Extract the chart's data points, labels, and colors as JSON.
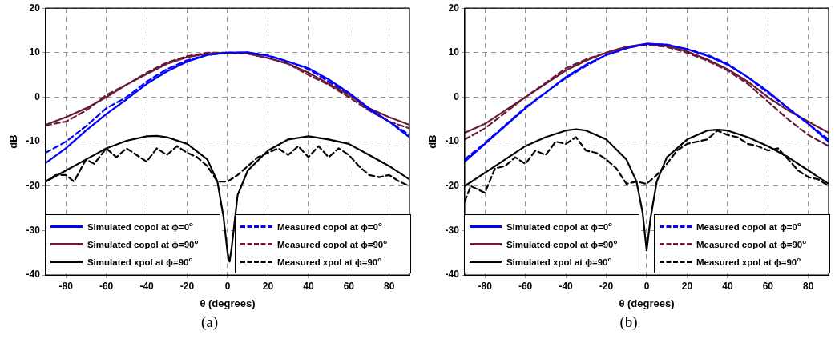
{
  "chart_data": [
    {
      "type": "line",
      "title": "(a)",
      "xlabel": "θ (degrees)",
      "ylabel": "dB",
      "xlim": [
        -90,
        90
      ],
      "xticks": [
        -80,
        -60,
        -40,
        -20,
        0,
        20,
        40,
        60,
        80
      ],
      "ylim": [
        -40,
        20
      ],
      "yticks": [
        -40,
        -30,
        -20,
        -10,
        0,
        10,
        20
      ],
      "grid": true,
      "legend": "bottom",
      "marker": "none",
      "series": [
        {
          "name": "Simulated copol at ϕ=0$^{o}$",
          "color": "#0000ff",
          "line_style": "solid",
          "x": [
            -90,
            -80,
            -70,
            -60,
            -50,
            -40,
            -30,
            -20,
            -10,
            0,
            10,
            20,
            30,
            40,
            50,
            60,
            70,
            80,
            90
          ],
          "values": [
            -14.8,
            -11.5,
            -7.5,
            -3.8,
            -0.5,
            3,
            5.8,
            8,
            9.5,
            10,
            10.1,
            9.3,
            8,
            6.5,
            4,
            1,
            -2.5,
            -5.5,
            -9
          ]
        },
        {
          "name": "Simulated copol at ϕ=90$^{o}$",
          "color": "#6b1a3a",
          "line_style": "solid",
          "x": [
            -90,
            -80,
            -70,
            -60,
            -50,
            -40,
            -30,
            -20,
            -10,
            0,
            10,
            20,
            30,
            40,
            50,
            60,
            70,
            80,
            90
          ],
          "values": [
            -6.2,
            -4.5,
            -2.5,
            0,
            2.8,
            5.2,
            7.5,
            9,
            9.8,
            10,
            9.8,
            8.8,
            7.5,
            5.5,
            3,
            0.5,
            -2.5,
            -4.5,
            -6.2
          ]
        },
        {
          "name": "Simulated xpol at ϕ=90$^{o}$",
          "color": "#000000",
          "line_style": "solid",
          "x": [
            -90,
            -80,
            -70,
            -60,
            -50,
            -40,
            -35,
            -30,
            -20,
            -10,
            -5,
            -2,
            0,
            1,
            2,
            5,
            10,
            20,
            30,
            40,
            50,
            60,
            70,
            80,
            90
          ],
          "values": [
            -19,
            -16.5,
            -14,
            -11.5,
            -9.8,
            -8.8,
            -8.7,
            -9,
            -10.5,
            -14,
            -19,
            -27,
            -35,
            -37,
            -34,
            -22,
            -16.5,
            -12,
            -9.5,
            -8.8,
            -9.5,
            -10.5,
            -13,
            -15.5,
            -18.5
          ]
        },
        {
          "name": "Measured copol at ϕ=0$^{o}$",
          "color": "#0000ff",
          "line_style": "dashed",
          "x": [
            -90,
            -80,
            -70,
            -60,
            -50,
            -40,
            -30,
            -20,
            -10,
            0,
            10,
            20,
            30,
            40,
            50,
            60,
            70,
            80,
            90
          ],
          "values": [
            -12.5,
            -10,
            -6.5,
            -2.5,
            0,
            3.5,
            6.3,
            8.3,
            9.5,
            10,
            10,
            9.4,
            8,
            6.3,
            3.5,
            0.7,
            -2.8,
            -5.5,
            -8.5
          ]
        },
        {
          "name": "Measured copol at ϕ=90$^{o}$",
          "color": "#6b1a3a",
          "line_style": "dashed",
          "x": [
            -90,
            -80,
            -70,
            -60,
            -50,
            -40,
            -30,
            -20,
            -10,
            0,
            10,
            20,
            30,
            40,
            50,
            60,
            70,
            80,
            90
          ],
          "values": [
            -6.3,
            -5.5,
            -3,
            0.5,
            2.8,
            5.5,
            7.8,
            9.2,
            10,
            10,
            9.8,
            8.8,
            7.5,
            5,
            2.8,
            0,
            -3,
            -5.5,
            -7
          ]
        },
        {
          "name": "Measured xpol at ϕ=90$^{o}$",
          "color": "#000000",
          "line_style": "dashed",
          "x": [
            -90,
            -85,
            -80,
            -76,
            -70,
            -66,
            -60,
            -55,
            -50,
            -45,
            -40,
            -35,
            -30,
            -25,
            -20,
            -15,
            -10,
            -5,
            0,
            5,
            10,
            15,
            20,
            25,
            30,
            35,
            40,
            45,
            50,
            55,
            60,
            65,
            70,
            75,
            80,
            85,
            90
          ],
          "values": [
            -19,
            -17.5,
            -17.5,
            -19,
            -14,
            -15,
            -11.5,
            -13.5,
            -11.5,
            -13,
            -14.5,
            -11.5,
            -13,
            -11,
            -12.5,
            -13.5,
            -15.5,
            -19,
            -19,
            -17.5,
            -15.5,
            -13.5,
            -12.5,
            -11.5,
            -13,
            -11,
            -13.5,
            -11,
            -13.5,
            -11.5,
            -13,
            -15.5,
            -17.5,
            -18,
            -17.5,
            -19,
            -20
          ]
        }
      ]
    },
    {
      "type": "line",
      "title": "(b)",
      "xlabel": "θ (degrees)",
      "ylabel": "dB",
      "xlim": [
        -90,
        90
      ],
      "xticks": [
        -80,
        -60,
        -40,
        -20,
        0,
        20,
        40,
        60,
        80
      ],
      "ylim": [
        -40,
        20
      ],
      "yticks": [
        -40,
        -30,
        -20,
        -10,
        0,
        10,
        20
      ],
      "grid": true,
      "legend": "bottom",
      "marker": "none",
      "series": [
        {
          "name": "Simulated copol at ϕ=0$^{o}$",
          "color": "#0000ff",
          "line_style": "solid",
          "x": [
            -90,
            -80,
            -70,
            -60,
            -50,
            -40,
            -30,
            -20,
            -10,
            0,
            10,
            20,
            30,
            40,
            50,
            60,
            70,
            80,
            90
          ],
          "values": [
            -14.5,
            -10.5,
            -6.5,
            -2.5,
            1,
            4.5,
            7.3,
            9.5,
            11,
            12,
            11.8,
            10.8,
            9.3,
            7.3,
            4.5,
            1.3,
            -2.5,
            -6,
            -10
          ]
        },
        {
          "name": "Simulated copol at ϕ=90$^{o}$",
          "color": "#6b1a3a",
          "line_style": "solid",
          "x": [
            -90,
            -80,
            -70,
            -60,
            -50,
            -40,
            -30,
            -20,
            -10,
            0,
            10,
            20,
            30,
            40,
            50,
            60,
            70,
            80,
            90
          ],
          "values": [
            -8,
            -6,
            -3,
            0,
            3,
            6,
            8.2,
            10,
            11.3,
            12,
            11.5,
            10.3,
            8.5,
            6.3,
            3.5,
            0,
            -3,
            -5.5,
            -8
          ]
        },
        {
          "name": "Simulated xpol at ϕ=90$^{o}$",
          "color": "#000000",
          "line_style": "solid",
          "x": [
            -90,
            -80,
            -70,
            -60,
            -50,
            -40,
            -35,
            -30,
            -20,
            -10,
            -5,
            -2,
            0,
            2,
            5,
            10,
            20,
            30,
            35,
            40,
            50,
            60,
            70,
            80,
            90
          ],
          "values": [
            -20,
            -17,
            -14,
            -11,
            -9,
            -7.5,
            -7.2,
            -7.5,
            -9.5,
            -14,
            -19,
            -26,
            -34.5,
            -27,
            -19,
            -13.5,
            -9.5,
            -7.5,
            -7.3,
            -7.5,
            -9,
            -11,
            -13.5,
            -16.5,
            -19.5
          ]
        },
        {
          "name": "Measured copol at ϕ=0$^{o}$",
          "color": "#0000ff",
          "line_style": "dashed",
          "x": [
            -90,
            -80,
            -70,
            -60,
            -50,
            -40,
            -30,
            -20,
            -10,
            0,
            10,
            20,
            30,
            40,
            50,
            60,
            70,
            80,
            90
          ],
          "values": [
            -14,
            -10.3,
            -6.3,
            -2.3,
            1,
            4.3,
            7,
            9.5,
            11,
            12,
            11.8,
            10.8,
            9.5,
            7.5,
            4.5,
            1,
            -2.5,
            -6,
            -9.5
          ]
        },
        {
          "name": "Measured copol at ϕ=90$^{o}$",
          "color": "#6b1a3a",
          "line_style": "dashed",
          "x": [
            -90,
            -80,
            -70,
            -60,
            -50,
            -40,
            -30,
            -20,
            -10,
            0,
            10,
            20,
            30,
            40,
            50,
            60,
            70,
            80,
            90
          ],
          "values": [
            -9.5,
            -7,
            -3.5,
            0,
            3.2,
            6.5,
            8.5,
            10,
            11.3,
            11.8,
            11.3,
            10,
            8.2,
            6,
            3,
            -1,
            -5,
            -8.5,
            -11
          ]
        },
        {
          "name": "Measured xpol at ϕ=90$^{o}$",
          "color": "#000000",
          "line_style": "dashed",
          "x": [
            -90,
            -87,
            -80,
            -75,
            -70,
            -65,
            -60,
            -55,
            -50,
            -45,
            -40,
            -35,
            -30,
            -25,
            -20,
            -15,
            -10,
            -5,
            0,
            5,
            10,
            15,
            20,
            25,
            30,
            35,
            40,
            45,
            50,
            55,
            60,
            65,
            70,
            75,
            80,
            85,
            90
          ],
          "values": [
            -23.5,
            -20,
            -21.5,
            -16,
            -15.5,
            -13.5,
            -15,
            -12,
            -13,
            -10,
            -10.5,
            -9,
            -12,
            -12.5,
            -14,
            -16,
            -19.5,
            -19,
            -19.5,
            -17.5,
            -15,
            -12,
            -10.5,
            -10,
            -9.5,
            -7.5,
            -8.5,
            -9,
            -10.5,
            -11,
            -12,
            -11.5,
            -14,
            -16.5,
            -18,
            -18.5,
            -20
          ]
        }
      ]
    }
  ]
}
